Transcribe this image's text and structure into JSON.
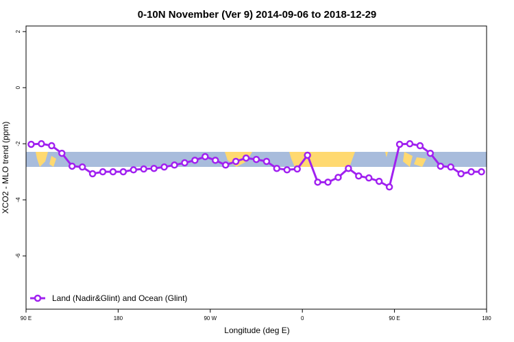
{
  "chart_data": {
    "type": "line",
    "title": "0-10N November (Ver 9)   2014-09-06 to 2018-12-29",
    "xlabel": "Longitude (deg E)",
    "ylabel": "XCO2 - MLO trend (ppm)",
    "xlim": [
      90,
      540
    ],
    "xticks": [
      {
        "value": 90,
        "label": "90 E"
      },
      {
        "value": 180,
        "label": "180"
      },
      {
        "value": 270,
        "label": "90 W"
      },
      {
        "value": 360,
        "label": "0"
      },
      {
        "value": 450,
        "label": "90 E"
      },
      {
        "value": 540,
        "label": "180"
      }
    ],
    "ylim": [
      -7.9,
      2.2
    ],
    "yticks": [
      2,
      0,
      -2,
      -4,
      -6
    ],
    "legend": "bottom-left",
    "x": [
      95,
      105,
      115,
      125,
      135,
      145,
      155,
      165,
      175,
      185,
      195,
      205,
      215,
      225,
      235,
      245,
      255,
      265,
      275,
      285,
      295,
      305,
      315,
      325,
      335,
      345,
      355,
      365,
      375,
      385,
      395,
      405,
      415,
      425,
      435,
      445,
      455,
      465,
      475,
      485,
      495,
      505,
      515,
      525,
      535
    ],
    "series": [
      {
        "name": "Land (Nadir&Glint) and Ocean (Glint)",
        "color": "#a020f0",
        "values": [
          -2.02,
          -2.0,
          -2.07,
          -2.34,
          -2.8,
          -2.83,
          -3.07,
          -3.0,
          -3.0,
          -3.0,
          -2.93,
          -2.9,
          -2.88,
          -2.83,
          -2.76,
          -2.68,
          -2.59,
          -2.46,
          -2.59,
          -2.76,
          -2.63,
          -2.51,
          -2.56,
          -2.63,
          -2.88,
          -2.93,
          -2.9,
          -2.41,
          -3.37,
          -3.37,
          -3.2,
          -2.88,
          -3.15,
          -3.22,
          -3.34,
          -3.54,
          -2.02,
          -2.0,
          -2.07,
          -2.34,
          -2.8,
          -2.83,
          -3.07,
          -3.0,
          -3.0
        ]
      }
    ]
  }
}
